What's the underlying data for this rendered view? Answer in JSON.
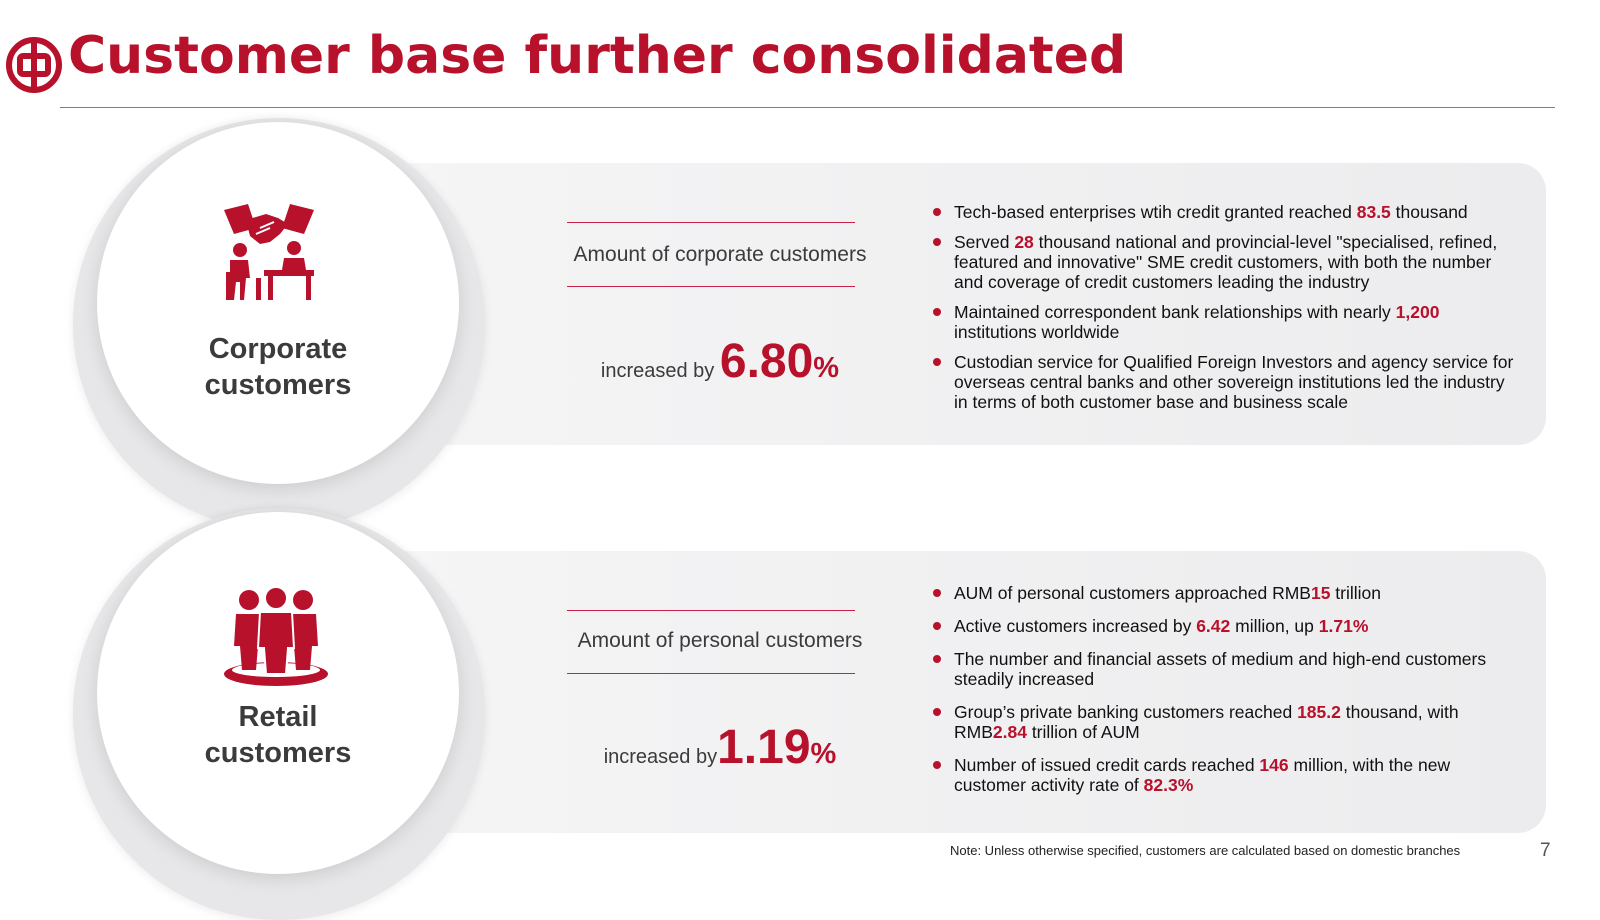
{
  "header": {
    "title": "Customer base further consolidated",
    "brand_color": "#b7112b",
    "logo_icon": "bank-logo-icon"
  },
  "sections": [
    {
      "label_line1": "Corporate",
      "label_line2": "customers",
      "icon": "handshake-meeting-icon",
      "metric_title": "Amount of corporate customers",
      "metric_prefix": "increased by ",
      "metric_value": "6.80",
      "metric_unit": "%",
      "bullets": [
        [
          {
            "t": "Tech-based enterprises wtih credit granted reached "
          },
          {
            "t": "83.5",
            "hl": true
          },
          {
            "t": " thousand"
          }
        ],
        [
          {
            "t": "Served "
          },
          {
            "t": "28",
            "hl": true
          },
          {
            "t": " thousand national and provincial-level \"specialised, refined, featured and innovative\" SME credit customers, with both the number and coverage of credit customers leading the industry"
          }
        ],
        [
          {
            "t": "Maintained correspondent bank relationships with nearly "
          },
          {
            "t": "1,200",
            "hl": true
          },
          {
            "t": " institutions worldwide"
          }
        ],
        [
          {
            "t": "Custodian service for Qualified Foreign Investors and agency service for overseas central banks and other sovereign institutions led the industry in terms of both customer base and business scale"
          }
        ]
      ]
    },
    {
      "label_line1": "Retail",
      "label_line2": "customers",
      "icon": "people-group-icon",
      "metric_title": "Amount of personal customers",
      "metric_prefix": "increased by",
      "metric_value": "1.19",
      "metric_unit": "%",
      "bullets": [
        [
          {
            "t": "AUM of personal customers approached RMB"
          },
          {
            "t": "15",
            "hl": true
          },
          {
            "t": " trillion"
          }
        ],
        [
          {
            "t": "Active customers increased by "
          },
          {
            "t": "6.42",
            "hl": true
          },
          {
            "t": " million, up "
          },
          {
            "t": "1.71%",
            "hl": true
          }
        ],
        [
          {
            "t": "The number and financial assets of medium and high-end customers steadily increased"
          }
        ],
        [
          {
            "t": "Group’s private banking customers reached "
          },
          {
            "t": "185.2",
            "hl": true
          },
          {
            "t": " thousand, with RMB"
          },
          {
            "t": "2.84",
            "hl": true
          },
          {
            "t": " trillion of AUM"
          }
        ],
        [
          {
            "t": "Number of issued credit cards reached "
          },
          {
            "t": "146",
            "hl": true
          },
          {
            "t": " million, with the new customer activity rate of "
          },
          {
            "t": "82.3%",
            "hl": true
          }
        ]
      ]
    }
  ],
  "footer": {
    "note": "Note:  Unless otherwise specified, customers are calculated based on domestic branches",
    "page_number": "7"
  }
}
